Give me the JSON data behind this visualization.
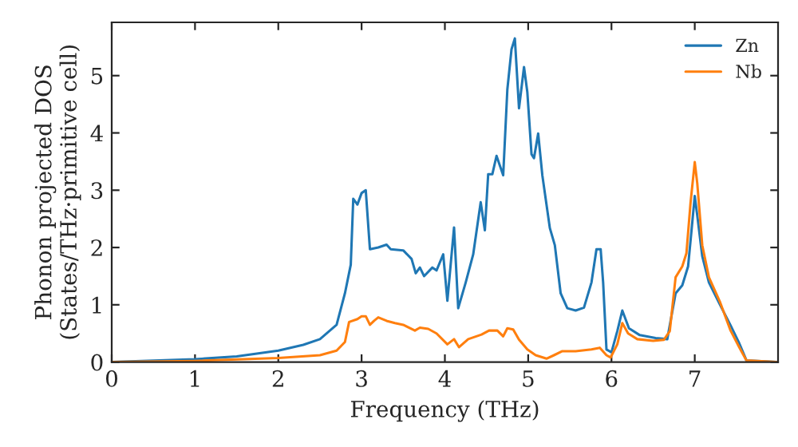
{
  "chart_data": {
    "type": "line",
    "xlabel": "Frequency (THz)",
    "ylabel": "Phonon projected DOS\n(States/THz·primitive cell)",
    "xlim": [
      0,
      8
    ],
    "ylim": [
      0,
      5.93
    ],
    "xticks": [
      0,
      1,
      2,
      3,
      4,
      5,
      6,
      7
    ],
    "yticks": [
      0,
      1,
      2,
      3,
      4,
      5
    ],
    "grid": false,
    "legend": "top right",
    "marker": "none",
    "line_style": "solid",
    "series": [
      {
        "name": "Zn",
        "color": "#1f77b4",
        "x": [
          0,
          1,
          1.5,
          2,
          2.3,
          2.5,
          2.7,
          2.8,
          2.87,
          2.9,
          2.95,
          3.0,
          3.05,
          3.1,
          3.2,
          3.3,
          3.35,
          3.5,
          3.6,
          3.65,
          3.7,
          3.75,
          3.85,
          3.9,
          3.98,
          4.03,
          4.11,
          4.16,
          4.25,
          4.34,
          4.43,
          4.48,
          4.52,
          4.57,
          4.62,
          4.7,
          4.75,
          4.8,
          4.84,
          4.89,
          4.95,
          4.99,
          5.04,
          5.07,
          5.12,
          5.17,
          5.26,
          5.32,
          5.39,
          5.47,
          5.57,
          5.67,
          5.76,
          5.82,
          5.87,
          5.9,
          5.94,
          6.0,
          6.07,
          6.13,
          6.21,
          6.34,
          6.53,
          6.67,
          6.77,
          6.85,
          6.92,
          6.96,
          7.0,
          7.03,
          7.09,
          7.17,
          7.3,
          7.43,
          7.53,
          7.62,
          7.98
        ],
        "values": [
          0,
          0.05,
          0.1,
          0.2,
          0.3,
          0.4,
          0.65,
          1.2,
          1.7,
          2.85,
          2.75,
          2.95,
          3.0,
          1.97,
          2.0,
          2.05,
          1.97,
          1.95,
          1.8,
          1.55,
          1.65,
          1.5,
          1.65,
          1.6,
          1.88,
          1.07,
          2.35,
          0.94,
          1.39,
          1.88,
          2.79,
          2.3,
          3.28,
          3.28,
          3.6,
          3.26,
          4.76,
          5.46,
          5.65,
          4.43,
          5.15,
          4.71,
          3.63,
          3.56,
          3.99,
          3.26,
          2.34,
          2.04,
          1.2,
          0.94,
          0.9,
          0.95,
          1.39,
          1.97,
          1.97,
          1.39,
          0.22,
          0.17,
          0.54,
          0.9,
          0.59,
          0.47,
          0.42,
          0.4,
          1.2,
          1.34,
          1.67,
          2.28,
          2.9,
          2.56,
          1.85,
          1.39,
          1.01,
          0.64,
          0.34,
          0.03,
          0
        ]
      },
      {
        "name": "Nb",
        "color": "#ff7f0e",
        "x": [
          0,
          1,
          2,
          2.5,
          2.7,
          2.8,
          2.85,
          2.95,
          3.0,
          3.05,
          3.1,
          3.15,
          3.2,
          3.3,
          3.4,
          3.5,
          3.64,
          3.7,
          3.8,
          3.9,
          4.03,
          4.11,
          4.17,
          4.28,
          4.44,
          4.53,
          4.63,
          4.7,
          4.75,
          4.82,
          4.89,
          4.99,
          5.09,
          5.22,
          5.31,
          5.41,
          5.57,
          5.76,
          5.86,
          5.94,
          5.99,
          6.07,
          6.13,
          6.2,
          6.31,
          6.5,
          6.63,
          6.7,
          6.77,
          6.85,
          6.9,
          6.95,
          7.0,
          7.03,
          7.09,
          7.17,
          7.3,
          7.43,
          7.53,
          7.62,
          7.98
        ],
        "values": [
          0,
          0.02,
          0.07,
          0.12,
          0.2,
          0.35,
          0.7,
          0.75,
          0.8,
          0.8,
          0.65,
          0.72,
          0.78,
          0.72,
          0.68,
          0.65,
          0.55,
          0.6,
          0.58,
          0.5,
          0.31,
          0.4,
          0.26,
          0.4,
          0.48,
          0.55,
          0.55,
          0.45,
          0.59,
          0.57,
          0.39,
          0.22,
          0.12,
          0.06,
          0.12,
          0.19,
          0.19,
          0.22,
          0.25,
          0.12,
          0.08,
          0.31,
          0.68,
          0.5,
          0.4,
          0.37,
          0.39,
          0.54,
          1.48,
          1.67,
          1.9,
          2.79,
          3.49,
          3.12,
          2.04,
          1.48,
          1.06,
          0.55,
          0.27,
          0.03,
          0
        ]
      }
    ]
  }
}
